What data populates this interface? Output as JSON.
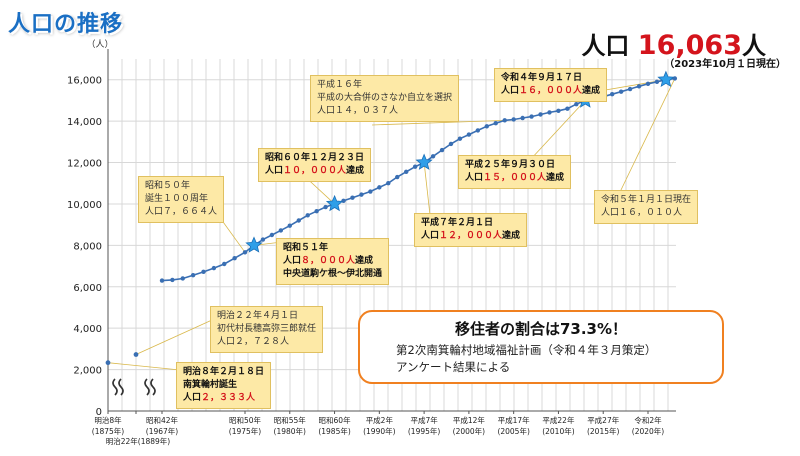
{
  "page_title": "人口の推移",
  "headline": {
    "label": "人口 ",
    "value": "16,063",
    "unit": "人",
    "date": "（2023年10月１日現在）"
  },
  "note": {
    "heading": "移住者の割合は73.3%！",
    "lines": [
      "第2次南箕輪村地域福祉計画（令和４年３月策定）",
      "アンケート結果による"
    ]
  },
  "callouts": [
    {
      "id": "s50",
      "lines": [
        "昭和５０年",
        "誕生１００周年",
        "人口７，６６４人"
      ]
    },
    {
      "id": "h16",
      "lines": [
        "平成１６年",
        "平成の大合併のさなか自立を選択",
        "人口１４，０３７人"
      ]
    },
    {
      "id": "s60",
      "lines": [
        "昭和６０年１２月２３日",
        "人口１０，０００人達成"
      ],
      "red": "１０，０００人"
    },
    {
      "id": "s51",
      "lines": [
        "昭和５１年",
        "人口８，０００人達成",
        "中央道駒ケ根～伊北開通"
      ],
      "red": "８，０００人"
    },
    {
      "id": "h7",
      "lines": [
        "平成７年２月１日",
        "人口１２，０００人達成"
      ],
      "red": "１２，０００人"
    },
    {
      "id": "h25",
      "lines": [
        "平成２５年９月３０日",
        "人口１５，０００人達成"
      ],
      "red": "１５，０００人"
    },
    {
      "id": "r4",
      "lines": [
        "令和４年９月１７日",
        "人口１６，０００人達成"
      ],
      "red": "１６，０００人"
    },
    {
      "id": "r5",
      "lines": [
        "令和５年１月１日現在",
        "人口１６，０１０人"
      ]
    },
    {
      "id": "m22",
      "lines": [
        "明治２２年４月１日",
        "初代村長穂高弥三郎就任",
        "人口２，７２８人"
      ]
    },
    {
      "id": "m8",
      "lines": [
        "明治８年２月１８日",
        "南箕輪村誕生",
        "人口２，３３３人"
      ],
      "red": "２，３３３人"
    }
  ],
  "colors": {
    "line": "#3a6fb3",
    "star": "#2f9fe8",
    "callout": "#fde9a6",
    "accent": "#d4141c",
    "note_border": "#f08020"
  },
  "chart_data": {
    "type": "line",
    "ylabel": "（人）",
    "ylim": [
      0,
      17000
    ],
    "yticks": [
      0,
      2000,
      4000,
      6000,
      8000,
      10000,
      12000,
      14000,
      16000
    ],
    "ytick_labels": [
      "0",
      "2,000",
      "4,000",
      "6,000",
      "8,000",
      "10,000",
      "12,000",
      "14,000",
      "16,000"
    ],
    "grid": true,
    "xticks": [
      {
        "year": 1875,
        "label": [
          "明治8年",
          "(1875年)"
        ]
      },
      {
        "year": 1889,
        "label": [
          "明治22年(1889年)"
        ]
      },
      {
        "year": 1967,
        "label": [
          "昭和42年",
          "(1967年)"
        ]
      },
      {
        "year": 1975,
        "label": [
          "昭和50年",
          "(1975年)"
        ]
      },
      {
        "year": 1980,
        "label": [
          "昭和55年",
          "(1980年)"
        ]
      },
      {
        "year": 1985,
        "label": [
          "昭和60年",
          "(1985年)"
        ]
      },
      {
        "year": 1990,
        "label": [
          "平成2年",
          "(1990年)"
        ]
      },
      {
        "year": 1995,
        "label": [
          "平成7年",
          "(1995年)"
        ]
      },
      {
        "year": 2000,
        "label": [
          "平成12年",
          "(2000年)"
        ]
      },
      {
        "year": 2005,
        "label": [
          "平成17年",
          "(2005年)"
        ]
      },
      {
        "year": 2010,
        "label": [
          "平成22年",
          "(2010年)"
        ]
      },
      {
        "year": 2015,
        "label": [
          "平成27年",
          "(2015年)"
        ]
      },
      {
        "year": 2020,
        "label": [
          "令和2年",
          "(2020年)"
        ]
      }
    ],
    "early_points": [
      {
        "year": 1875,
        "value": 2333
      },
      {
        "year": 1889,
        "value": 2728
      }
    ],
    "series": [
      {
        "values": [
          [
            1967,
            6300
          ],
          [
            1968,
            6330
          ],
          [
            1969,
            6400
          ],
          [
            1970,
            6560
          ],
          [
            1971,
            6720
          ],
          [
            1972,
            6900
          ],
          [
            1973,
            7100
          ],
          [
            1974,
            7380
          ],
          [
            1975,
            7664
          ],
          [
            1976,
            8000
          ],
          [
            1977,
            8280
          ],
          [
            1978,
            8500
          ],
          [
            1979,
            8720
          ],
          [
            1980,
            8950
          ],
          [
            1981,
            9200
          ],
          [
            1982,
            9450
          ],
          [
            1983,
            9650
          ],
          [
            1984,
            9850
          ],
          [
            1985,
            10000
          ],
          [
            1986,
            10150
          ],
          [
            1987,
            10300
          ],
          [
            1988,
            10450
          ],
          [
            1989,
            10600
          ],
          [
            1990,
            10800
          ],
          [
            1991,
            11000
          ],
          [
            1992,
            11300
          ],
          [
            1993,
            11550
          ],
          [
            1994,
            11800
          ],
          [
            1995,
            12000
          ],
          [
            1996,
            12300
          ],
          [
            1997,
            12600
          ],
          [
            1998,
            12900
          ],
          [
            1999,
            13150
          ],
          [
            2000,
            13350
          ],
          [
            2001,
            13550
          ],
          [
            2002,
            13750
          ],
          [
            2003,
            13900
          ],
          [
            2004,
            14037
          ],
          [
            2005,
            14080
          ],
          [
            2006,
            14150
          ],
          [
            2007,
            14220
          ],
          [
            2008,
            14320
          ],
          [
            2009,
            14420
          ],
          [
            2010,
            14500
          ],
          [
            2011,
            14600
          ],
          [
            2012,
            14820
          ],
          [
            2013,
            15000
          ],
          [
            2014,
            15100
          ],
          [
            2015,
            15180
          ],
          [
            2016,
            15300
          ],
          [
            2017,
            15420
          ],
          [
            2018,
            15550
          ],
          [
            2019,
            15680
          ],
          [
            2020,
            15800
          ],
          [
            2021,
            15900
          ],
          [
            2022,
            16000
          ],
          [
            2023,
            16063
          ]
        ]
      }
    ],
    "milestones": [
      {
        "year": 1976,
        "value": 8000,
        "label": "昭和５１年"
      },
      {
        "year": 1985,
        "value": 10000,
        "label": "昭和６０年１２月２３日"
      },
      {
        "year": 1995,
        "value": 12000,
        "label": "平成７年２月１日"
      },
      {
        "year": 2013,
        "value": 15000,
        "label": "平成２５年９月３０日"
      },
      {
        "year": 2022,
        "value": 16000,
        "label": "令和４年９月１７日"
      }
    ]
  }
}
